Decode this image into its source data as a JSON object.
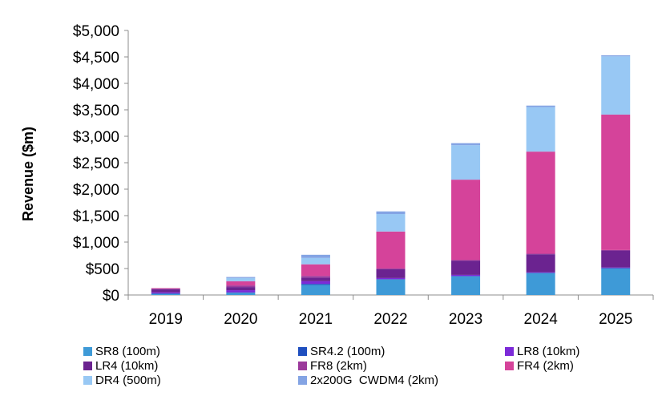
{
  "chart_data": {
    "type": "bar",
    "stacked": true,
    "ylabel": "Revenue ($m)",
    "xlabel": "",
    "ylim": [
      0,
      5000
    ],
    "yticks": [
      0,
      500,
      1000,
      1500,
      2000,
      2500,
      3000,
      3500,
      4000,
      4500,
      5000
    ],
    "ytick_labels": [
      "$0",
      "$500",
      "$1,000",
      "$1,500",
      "$2,000",
      "$2,500",
      "$3,000",
      "$3,500",
      "$4,000",
      "$4,500",
      "$5,000"
    ],
    "categories": [
      "2019",
      "2020",
      "2021",
      "2022",
      "2023",
      "2024",
      "2025"
    ],
    "grid": false,
    "legend_position": "bottom",
    "series": [
      {
        "name": "SR8 (100m)",
        "color": "#3e9ad7",
        "values": [
          20,
          40,
          190,
          290,
          350,
          410,
          500
        ]
      },
      {
        "name": "SR4.2 (100m)",
        "color": "#1f4fbf",
        "values": [
          10,
          10,
          20,
          10,
          10,
          10,
          10
        ]
      },
      {
        "name": "LR8 (10km)",
        "color": "#7c2ad8",
        "values": [
          20,
          40,
          50,
          20,
          20,
          10,
          10
        ]
      },
      {
        "name": "LR4 (10km)",
        "color": "#6b2390",
        "values": [
          60,
          60,
          70,
          170,
          270,
          340,
          320
        ]
      },
      {
        "name": "FR8 (2km)",
        "color": "#9c3a9c",
        "values": [
          10,
          30,
          30,
          10,
          10,
          10,
          10
        ]
      },
      {
        "name": "FR4 (2km)",
        "color": "#d5439a",
        "values": [
          10,
          80,
          220,
          700,
          1520,
          1930,
          2560
        ]
      },
      {
        "name": "DR4 (500m)",
        "color": "#98c8f4",
        "values": [
          0,
          60,
          120,
          330,
          650,
          840,
          1100
        ]
      },
      {
        "name": "2x200G  CWDM4 (2km)",
        "color": "#84a4e4",
        "values": [
          0,
          20,
          60,
          50,
          40,
          30,
          20
        ]
      }
    ]
  }
}
